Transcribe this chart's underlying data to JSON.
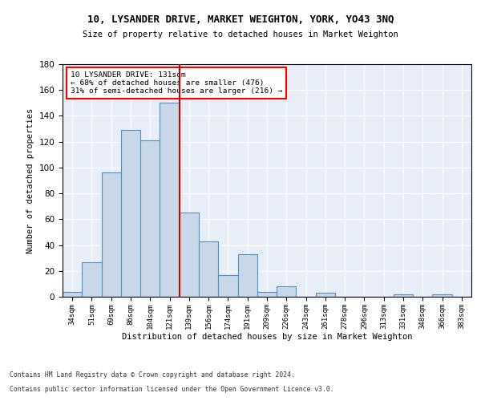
{
  "title": "10, LYSANDER DRIVE, MARKET WEIGHTON, YORK, YO43 3NQ",
  "subtitle": "Size of property relative to detached houses in Market Weighton",
  "xlabel": "Distribution of detached houses by size in Market Weighton",
  "ylabel": "Number of detached properties",
  "categories": [
    "34sqm",
    "51sqm",
    "69sqm",
    "86sqm",
    "104sqm",
    "121sqm",
    "139sqm",
    "156sqm",
    "174sqm",
    "191sqm",
    "209sqm",
    "226sqm",
    "243sqm",
    "261sqm",
    "278sqm",
    "296sqm",
    "313sqm",
    "331sqm",
    "348sqm",
    "366sqm",
    "383sqm"
  ],
  "values": [
    4,
    27,
    96,
    129,
    121,
    150,
    65,
    43,
    17,
    33,
    4,
    8,
    0,
    3,
    0,
    0,
    0,
    2,
    0,
    2,
    0
  ],
  "bar_color": "#c8d8e8",
  "bar_edge_color": "#5090c0",
  "red_line_x": 5.5,
  "annotation_box_text": "10 LYSANDER DRIVE: 131sqm\n← 68% of detached houses are smaller (476)\n31% of semi-detached houses are larger (216) →",
  "red_line_color": "#cc0000",
  "background_color": "#e8eef8",
  "grid_color": "#ffffff",
  "footer_line1": "Contains HM Land Registry data © Crown copyright and database right 2024.",
  "footer_line2": "Contains public sector information licensed under the Open Government Licence v3.0.",
  "ylim": [
    0,
    180
  ],
  "yticks": [
    0,
    20,
    40,
    60,
    80,
    100,
    120,
    140,
    160,
    180
  ]
}
